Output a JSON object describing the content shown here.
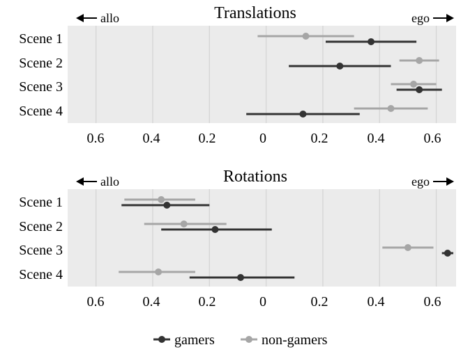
{
  "chart_data": [
    {
      "type": "scatter",
      "title": "Translations",
      "left_label": "allo",
      "right_label": "ego",
      "rows": [
        "Scene 1",
        "Scene 2",
        "Scene 3",
        "Scene 4"
      ],
      "x_ticks": [
        -0.6,
        -0.4,
        -0.2,
        0,
        0.2,
        0.4,
        0.6
      ],
      "x_tick_labels": [
        "0.6",
        "0.4",
        "0.2",
        "0",
        "0.2",
        "0.4",
        "0.6"
      ],
      "xlim": [
        -0.7,
        0.67
      ],
      "grid": true,
      "series": [
        {
          "name": "gamers",
          "color": "#333333",
          "points": [
            {
              "row": "Scene 1",
              "mean": 0.37,
              "low": 0.21,
              "high": 0.53
            },
            {
              "row": "Scene 2",
              "mean": 0.26,
              "low": 0.08,
              "high": 0.44
            },
            {
              "row": "Scene 3",
              "mean": 0.54,
              "low": 0.46,
              "high": 0.62
            },
            {
              "row": "Scene 4",
              "mean": 0.13,
              "low": -0.07,
              "high": 0.33
            }
          ]
        },
        {
          "name": "non-gamers",
          "color": "#a6a6a6",
          "points": [
            {
              "row": "Scene 1",
              "mean": 0.14,
              "low": -0.03,
              "high": 0.31
            },
            {
              "row": "Scene 2",
              "mean": 0.54,
              "low": 0.47,
              "high": 0.61
            },
            {
              "row": "Scene 3",
              "mean": 0.52,
              "low": 0.44,
              "high": 0.6
            },
            {
              "row": "Scene 4",
              "mean": 0.44,
              "low": 0.31,
              "high": 0.57
            }
          ]
        }
      ]
    },
    {
      "type": "scatter",
      "title": "Rotations",
      "left_label": "allo",
      "right_label": "ego",
      "rows": [
        "Scene 1",
        "Scene 2",
        "Scene 3",
        "Scene 4"
      ],
      "x_ticks": [
        -0.6,
        -0.4,
        -0.2,
        0,
        0.2,
        0.4,
        0.6
      ],
      "x_tick_labels": [
        "0.6",
        "0.4",
        "0.2",
        "0",
        "0.2",
        "0.4",
        "0.6"
      ],
      "xlim": [
        -0.7,
        0.67
      ],
      "grid": true,
      "series": [
        {
          "name": "gamers",
          "color": "#333333",
          "points": [
            {
              "row": "Scene 1",
              "mean": -0.35,
              "low": -0.51,
              "high": -0.2
            },
            {
              "row": "Scene 2",
              "mean": -0.18,
              "low": -0.37,
              "high": 0.02
            },
            {
              "row": "Scene 3",
              "mean": 0.64,
              "low": 0.62,
              "high": 0.66
            },
            {
              "row": "Scene 4",
              "mean": -0.09,
              "low": -0.27,
              "high": 0.1
            }
          ]
        },
        {
          "name": "non-gamers",
          "color": "#a6a6a6",
          "points": [
            {
              "row": "Scene 1",
              "mean": -0.37,
              "low": -0.5,
              "high": -0.25
            },
            {
              "row": "Scene 2",
              "mean": -0.29,
              "low": -0.43,
              "high": -0.14
            },
            {
              "row": "Scene 3",
              "mean": 0.5,
              "low": 0.41,
              "high": 0.59
            },
            {
              "row": "Scene 4",
              "mean": -0.38,
              "low": -0.52,
              "high": -0.25
            }
          ]
        }
      ]
    }
  ],
  "legend": {
    "placement": "bottom",
    "items": [
      {
        "label": "gamers",
        "color": "#333333"
      },
      {
        "label": "non-gamers",
        "color": "#a6a6a6"
      }
    ]
  }
}
